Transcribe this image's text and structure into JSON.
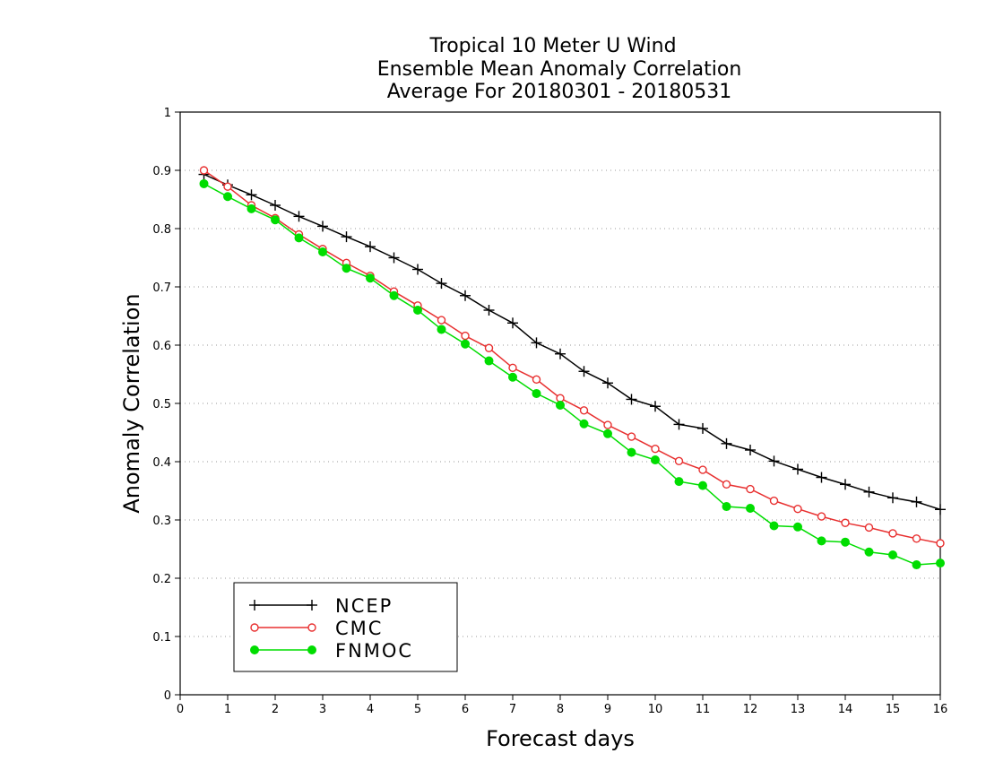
{
  "chart_data": {
    "type": "line",
    "title": [
      "Tropical 10 Meter U Wind",
      "Ensemble Mean Anomaly Correlation",
      "Average For 20180301 - 20180531"
    ],
    "xlabel": "Forecast days",
    "ylabel": "Anomaly Correlation",
    "xlim": [
      0,
      16
    ],
    "ylim": [
      0,
      1
    ],
    "x_ticks": [
      "0",
      "1",
      "2",
      "3",
      "4",
      "5",
      "6",
      "7",
      "8",
      "9",
      "10",
      "11",
      "12",
      "13",
      "14",
      "15",
      "16"
    ],
    "y_ticks": [
      "0",
      "0.1",
      "0.2",
      "0.3",
      "0.4",
      "0.5",
      "0.6",
      "0.7",
      "0.8",
      "0.9",
      "1"
    ],
    "grid": "horizontal dotted",
    "legend_position": "bottom-left",
    "x": [
      0.5,
      1,
      1.5,
      2,
      2.5,
      3,
      3.5,
      4,
      4.5,
      5,
      5.5,
      6,
      6.5,
      7,
      7.5,
      8,
      8.5,
      9,
      9.5,
      10,
      10.5,
      11,
      11.5,
      12,
      12.5,
      13,
      13.5,
      14,
      14.5,
      15,
      15.5,
      16
    ],
    "series": [
      {
        "name": "NCEP",
        "color": "#000000",
        "marker": "plus",
        "values": [
          0.893,
          0.875,
          0.858,
          0.84,
          0.821,
          0.804,
          0.786,
          0.769,
          0.75,
          0.73,
          0.706,
          0.685,
          0.66,
          0.638,
          0.604,
          0.585,
          0.555,
          0.535,
          0.507,
          0.495,
          0.464,
          0.457,
          0.431,
          0.42,
          0.401,
          0.387,
          0.373,
          0.361,
          0.348,
          0.338,
          0.331,
          0.318
        ]
      },
      {
        "name": "CMC",
        "color": "#e83030",
        "marker": "open-circle",
        "values": [
          0.9,
          0.872,
          0.84,
          0.818,
          0.79,
          0.765,
          0.741,
          0.719,
          0.692,
          0.668,
          0.643,
          0.616,
          0.595,
          0.561,
          0.541,
          0.509,
          0.488,
          0.463,
          0.443,
          0.422,
          0.401,
          0.386,
          0.361,
          0.353,
          0.333,
          0.319,
          0.306,
          0.295,
          0.287,
          0.277,
          0.268,
          0.26
        ]
      },
      {
        "name": "FNMOC",
        "color": "#00dd00",
        "marker": "filled-circle",
        "values": [
          0.877,
          0.855,
          0.834,
          0.815,
          0.784,
          0.76,
          0.732,
          0.715,
          0.685,
          0.66,
          0.627,
          0.602,
          0.573,
          0.545,
          0.517,
          0.497,
          0.465,
          0.448,
          0.416,
          0.403,
          0.366,
          0.359,
          0.323,
          0.32,
          0.29,
          0.288,
          0.264,
          0.262,
          0.245,
          0.24,
          0.223,
          0.226
        ]
      }
    ]
  }
}
